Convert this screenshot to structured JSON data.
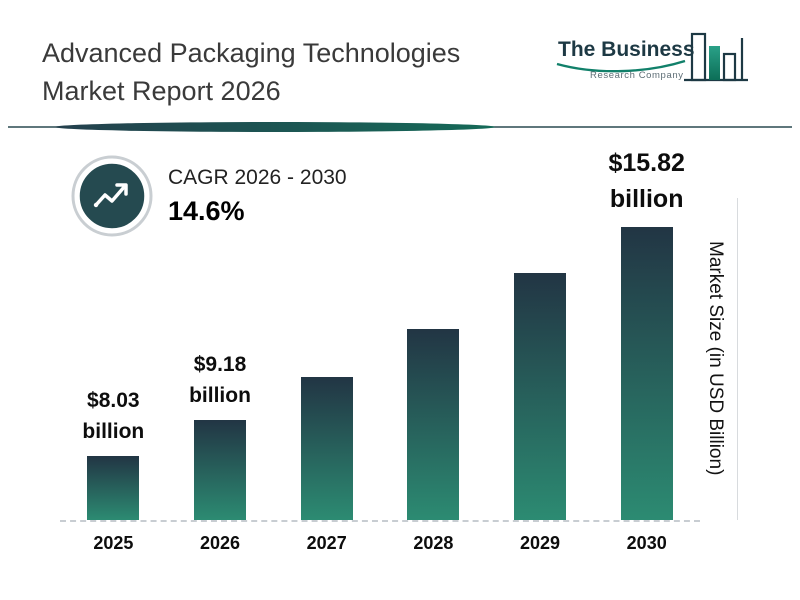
{
  "header": {
    "title": "Advanced Packaging Technologies Market Report 2026",
    "logo": {
      "name": "The Business",
      "tagline": "Research Company"
    }
  },
  "cagr": {
    "label": "CAGR 2026 - 2030",
    "value": "14.6%"
  },
  "ylabel": "Market Size (in USD Billion)",
  "chart_data": {
    "type": "bar",
    "title": "Advanced Packaging Technologies Market Report 2026",
    "xlabel": "",
    "ylabel": "Market Size (in USD Billion)",
    "ylim": [
      6,
      16
    ],
    "grid": false,
    "legend": "none",
    "categories": [
      "2025",
      "2026",
      "2027",
      "2028",
      "2029",
      "2030"
    ],
    "bars": [
      {
        "year": "2025",
        "value": 8.03,
        "label_value": "$8.03",
        "label_unit": "billion"
      },
      {
        "year": "2026",
        "value": 9.18,
        "label_value": "$9.18",
        "label_unit": "billion"
      },
      {
        "year": "2027",
        "value": 10.52
      },
      {
        "year": "2028",
        "value": 12.06
      },
      {
        "year": "2029",
        "value": 13.82
      },
      {
        "year": "2030",
        "value": 15.82,
        "label_value": "$15.82",
        "label_unit": "billion"
      }
    ],
    "annotations": [
      "$8.03 billion",
      "$9.18 billion",
      "$15.82 billion"
    ]
  },
  "colors": {
    "bar_top": "#223544",
    "bar_bottom": "#2c8b72",
    "accent_teal": "#11806a",
    "badge_fill": "#254a50",
    "divider_dark": "#24404d",
    "divider_green": "#156a58"
  }
}
